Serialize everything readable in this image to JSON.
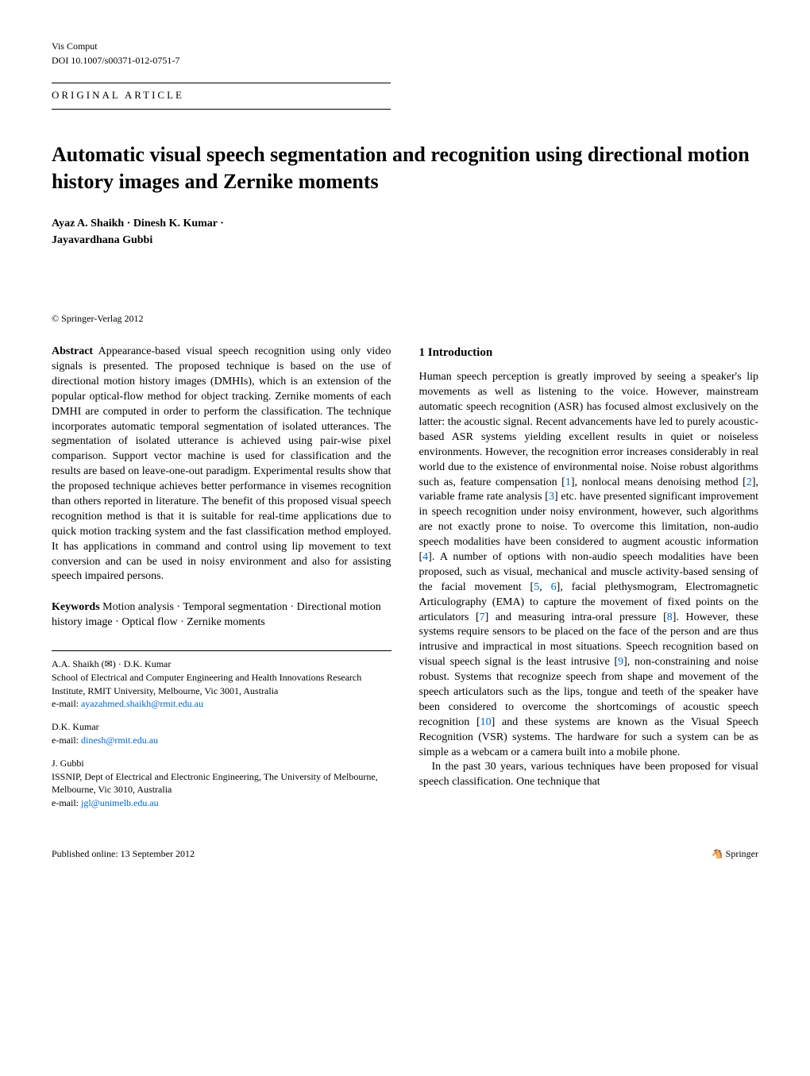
{
  "header": {
    "journal": "Vis Comput",
    "doi": "DOI 10.1007/s00371-012-0751-7",
    "article_type": "ORIGINAL ARTICLE"
  },
  "title": "Automatic visual speech segmentation and recognition using directional motion history images and Zernike moments",
  "authors_line1": "Ayaz A. Shaikh · Dinesh K. Kumar ·",
  "authors_line2": "Jayavardhana Gubbi",
  "copyright": "© Springer-Verlag 2012",
  "abstract": {
    "label": "Abstract",
    "text": " Appearance-based visual speech recognition using only video signals is presented. The proposed technique is based on the use of directional motion history images (DMHIs), which is an extension of the popular optical-flow method for object tracking. Zernike moments of each DMHI are computed in order to perform the classification. The technique incorporates automatic temporal segmentation of isolated utterances. The segmentation of isolated utterance is achieved using pair-wise pixel comparison. Support vector machine is used for classification and the results are based on leave-one-out paradigm. Experimental results show that the proposed technique achieves better performance in visemes recognition than others reported in literature. The benefit of this proposed visual speech recognition method is that it is suitable for real-time applications due to quick motion tracking system and the fast classification method employed. It has applications in command and control using lip movement to text conversion and can be used in noisy environment and also for assisting speech impaired persons."
  },
  "keywords": {
    "label": "Keywords",
    "text": " Motion analysis · Temporal segmentation · Directional motion history image · Optical flow · Zernike moments"
  },
  "author_info": {
    "a1_name": "A.A. Shaikh (✉) · D.K. Kumar",
    "a1_affil": "School of Electrical and Computer Engineering and Health Innovations Research Institute, RMIT University, Melbourne, Vic 3001, Australia",
    "a1_email_label": "e-mail: ",
    "a1_email": "ayazahmed.shaikh@rmit.edu.au",
    "a2_name": "D.K. Kumar",
    "a2_email_label": "e-mail: ",
    "a2_email": "dinesh@rmit.edu.au",
    "a3_name": "J. Gubbi",
    "a3_affil": "ISSNIP, Dept of Electrical and Electronic Engineering, The University of Melbourne, Melbourne, Vic 3010, Australia",
    "a3_email_label": "e-mail: ",
    "a3_email": "jgl@unimelb.edu.au"
  },
  "section1_heading": "1 Introduction",
  "intro": {
    "p1a": "Human speech perception is greatly improved by seeing a speaker's lip movements as well as listening to the voice. However, mainstream automatic speech recognition (ASR) has focused almost exclusively on the latter: the acoustic signal. Recent advancements have led to purely acoustic-based ASR systems yielding excellent results in quiet or noiseless environments. However, the recognition error increases considerably in real world due to the existence of environmental noise. Noise robust algorithms such as, feature compensation [",
    "r1": "1",
    "p1b": "], nonlocal means denoising method [",
    "r2": "2",
    "p1c": "], variable frame rate analysis [",
    "r3": "3",
    "p1d": "] etc. have presented significant improvement in speech recognition under noisy environment, however, such algorithms are not exactly prone to noise. To overcome this limitation, non-audio speech modalities have been considered to augment acoustic information [",
    "r4": "4",
    "p1e": "]. A number of options with non-audio speech modalities have been proposed, such as visual, mechanical and muscle activity-based sensing of the facial movement [",
    "r5": "5",
    "p1f": ", ",
    "r6": "6",
    "p1g": "], facial plethysmogram, Electromagnetic Articulography (EMA) to capture the movement of fixed points on the articulators [",
    "r7": "7",
    "p1h": "] and measuring intra-oral pressure [",
    "r8": "8",
    "p1i": "]. However, these systems require sensors to be placed on the face of the person and are thus intrusive and impractical in most situations. Speech recognition based on visual speech signal is the least intrusive [",
    "r9": "9",
    "p1j": "], non-constraining and noise robust. Systems that recognize speech from shape and movement of the speech articulators such as the lips, tongue and teeth of the speaker have been considered to overcome the shortcomings of acoustic speech recognition [",
    "r10": "10",
    "p1k": "] and these systems are known as the Visual Speech Recognition (VSR) systems. The hardware for such a system can be as simple as a webcam or a camera built into a mobile phone.",
    "p2": "In the past 30 years, various techniques have been proposed for visual speech classification. One technique that"
  },
  "footer": {
    "published": "Published online: 13 September 2012",
    "springer": "Springer"
  }
}
